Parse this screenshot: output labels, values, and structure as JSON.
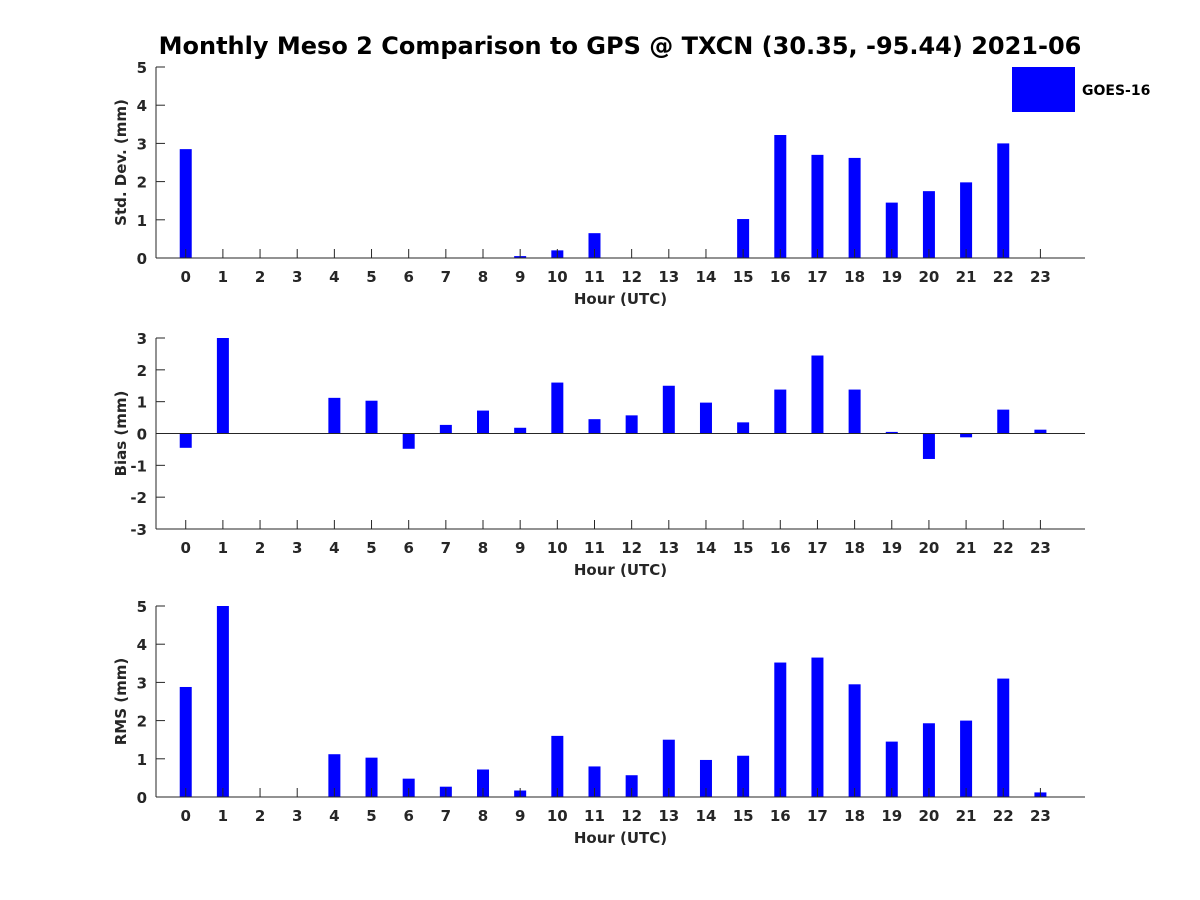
{
  "title": "Monthly Meso 2 Comparison to GPS @ TXCN (30.35, -95.44) 2021-06",
  "colors": {
    "bar": "#0000ff",
    "axis": "#262626",
    "background": "#ffffff"
  },
  "legend": {
    "label": "GOES-16",
    "placement": "top-right"
  },
  "chart_data": [
    {
      "type": "bar",
      "name": "std-dev",
      "xlabel": "Hour (UTC)",
      "ylabel": "Std. Dev. (mm)",
      "ylim": [
        0,
        5
      ],
      "yticks": [
        0,
        1,
        2,
        3,
        4,
        5
      ],
      "categories": [
        "0",
        "1",
        "2",
        "3",
        "4",
        "5",
        "6",
        "7",
        "8",
        "9",
        "10",
        "11",
        "12",
        "13",
        "14",
        "15",
        "16",
        "17",
        "18",
        "19",
        "20",
        "21",
        "22",
        "23"
      ],
      "series": [
        {
          "name": "GOES-16",
          "values": [
            2.85,
            0,
            0,
            0,
            0,
            0,
            0,
            0,
            0,
            0.05,
            0.2,
            0.65,
            0,
            0,
            0,
            1.02,
            3.22,
            2.7,
            2.62,
            1.45,
            1.75,
            1.98,
            3.0,
            0
          ]
        }
      ]
    },
    {
      "type": "bar",
      "name": "bias",
      "xlabel": "Hour (UTC)",
      "ylabel": "Bias (mm)",
      "ylim": [
        -3,
        3
      ],
      "yticks": [
        -3,
        -2,
        -1,
        0,
        1,
        2,
        3
      ],
      "categories": [
        "0",
        "1",
        "2",
        "3",
        "4",
        "5",
        "6",
        "7",
        "8",
        "9",
        "10",
        "11",
        "12",
        "13",
        "14",
        "15",
        "16",
        "17",
        "18",
        "19",
        "20",
        "21",
        "22",
        "23"
      ],
      "series": [
        {
          "name": "GOES-16",
          "values": [
            -0.45,
            3.0,
            0,
            0,
            1.12,
            1.03,
            -0.48,
            0.27,
            0.72,
            0.18,
            1.6,
            0.45,
            0.57,
            1.5,
            0.97,
            0.35,
            1.38,
            2.45,
            1.38,
            0.05,
            -0.8,
            -0.12,
            0.75,
            0.12
          ]
        }
      ]
    },
    {
      "type": "bar",
      "name": "rms",
      "xlabel": "Hour (UTC)",
      "ylabel": "RMS (mm)",
      "ylim": [
        0,
        5
      ],
      "yticks": [
        0,
        1,
        2,
        3,
        4,
        5
      ],
      "categories": [
        "0",
        "1",
        "2",
        "3",
        "4",
        "5",
        "6",
        "7",
        "8",
        "9",
        "10",
        "11",
        "12",
        "13",
        "14",
        "15",
        "16",
        "17",
        "18",
        "19",
        "20",
        "21",
        "22",
        "23"
      ],
      "series": [
        {
          "name": "GOES-16",
          "values": [
            2.88,
            5.0,
            0,
            0,
            1.12,
            1.03,
            0.48,
            0.27,
            0.72,
            0.17,
            1.6,
            0.8,
            0.57,
            1.5,
            0.97,
            1.08,
            3.52,
            3.65,
            2.95,
            1.45,
            1.93,
            2.0,
            3.1,
            0.12
          ]
        }
      ]
    }
  ]
}
